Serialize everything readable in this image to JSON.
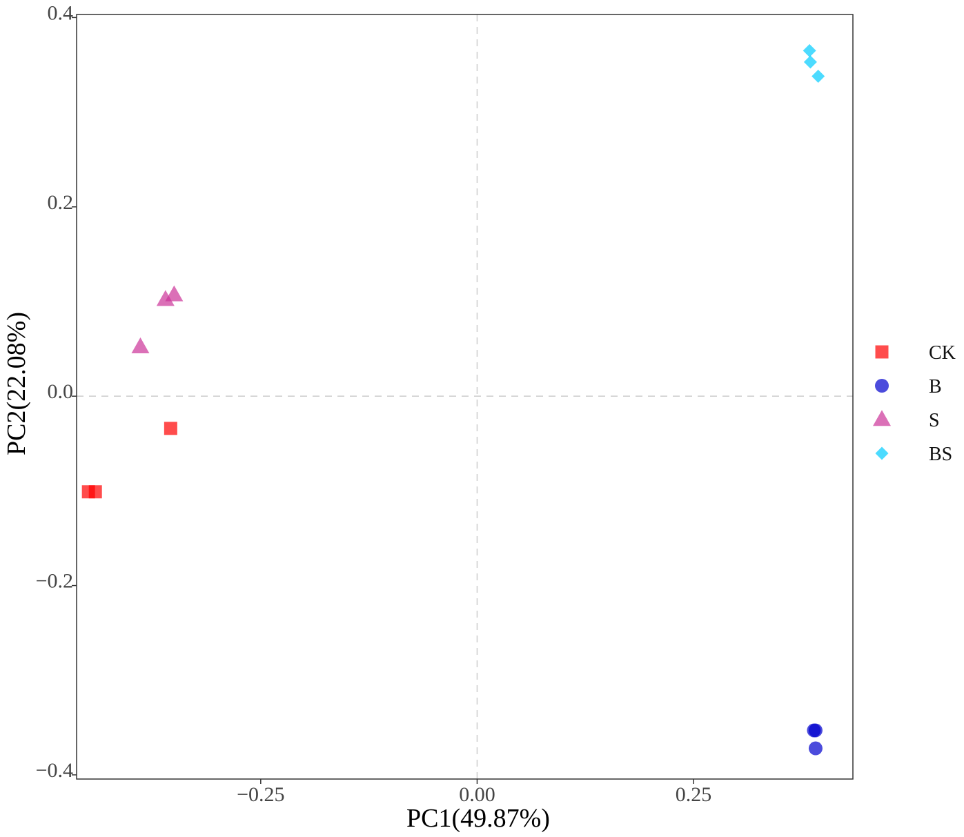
{
  "chart_data": {
    "type": "scatter",
    "title": "",
    "xlabel": "PC1(49.87%)",
    "ylabel": "PC2(22.08%)",
    "xlim": [
      -0.4627,
      0.4341
    ],
    "ylim": [
      -0.4044,
      0.4032
    ],
    "xticks": [
      {
        "value": -0.25,
        "label": "−0.25"
      },
      {
        "value": 0.0,
        "label": "0.00"
      },
      {
        "value": 0.25,
        "label": "0.25"
      }
    ],
    "yticks": [
      {
        "value": 0.4,
        "label": "0.4"
      },
      {
        "value": 0.2,
        "label": "0.2"
      },
      {
        "value": 0.0,
        "label": "0.0"
      },
      {
        "value": -0.2,
        "label": "−0.2"
      },
      {
        "value": -0.4,
        "label": "−0.4"
      }
    ],
    "grid": false,
    "reference_lines": {
      "x": 0,
      "y": 0,
      "style": "dashed"
    },
    "legend_position": "right",
    "series": [
      {
        "name": "CK",
        "shape": "square",
        "color": "#FF0000",
        "points": [
          {
            "x": -0.449,
            "y": -0.101
          },
          {
            "x": -0.441,
            "y": -0.101
          },
          {
            "x": -0.354,
            "y": -0.034
          }
        ]
      },
      {
        "name": "B",
        "shape": "circle",
        "color": "#0000CD",
        "points": [
          {
            "x": 0.389,
            "y": -0.353
          },
          {
            "x": 0.391,
            "y": -0.353
          },
          {
            "x": 0.391,
            "y": -0.372
          }
        ]
      },
      {
        "name": "S",
        "shape": "triangle",
        "color": "#CC3399",
        "points": [
          {
            "x": -0.389,
            "y": 0.052
          },
          {
            "x": -0.36,
            "y": 0.102
          },
          {
            "x": -0.35,
            "y": 0.107
          }
        ]
      },
      {
        "name": "BS",
        "shape": "diamond",
        "color": "#00CCFF",
        "points": [
          {
            "x": 0.384,
            "y": 0.365
          },
          {
            "x": 0.385,
            "y": 0.353
          },
          {
            "x": 0.394,
            "y": 0.338
          }
        ]
      }
    ]
  }
}
